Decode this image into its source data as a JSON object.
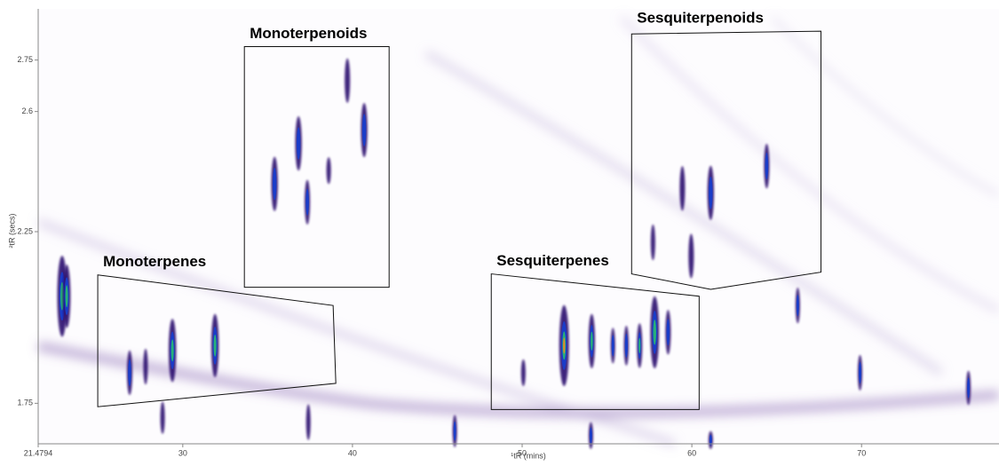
{
  "chart_data": {
    "type": "contour",
    "x_label": "¹tR (mins)",
    "y_label": "²tR (secs)",
    "xlim": [
      21.4794,
      78.1
    ],
    "ylim": [
      1.632,
      2.899
    ],
    "xticks": [
      21.4794,
      30,
      40,
      50,
      60,
      70
    ],
    "yticks": [
      1.75,
      2.25,
      2.6,
      2.75
    ],
    "x": [
      22.89,
      23.16,
      26.87,
      27.81,
      29.39,
      31.9,
      28.81,
      35.41,
      36.82,
      37.34,
      38.6,
      39.7,
      40.69,
      37.4,
      46.03,
      50.07,
      52.47,
      54.1,
      55.35,
      56.14,
      56.92,
      57.81,
      58.6,
      59.44,
      61.11,
      64.41,
      66.24,
      69.91,
      59.96,
      57.71,
      54.05,
      61.11,
      76.3
    ],
    "y": [
      2.062,
      2.062,
      1.839,
      1.857,
      1.904,
      1.918,
      1.708,
      2.389,
      2.507,
      2.336,
      2.428,
      2.69,
      2.546,
      1.695,
      1.669,
      1.839,
      1.918,
      1.931,
      1.918,
      1.918,
      1.918,
      1.957,
      1.957,
      2.376,
      2.363,
      2.441,
      2.035,
      1.839,
      2.179,
      2.219,
      1.656,
      1.643,
      1.795
    ],
    "spread": [
      0.118,
      0.092,
      0.065,
      0.052,
      0.092,
      0.092,
      0.047,
      0.079,
      0.079,
      0.065,
      0.039,
      0.065,
      0.079,
      0.052,
      0.047,
      0.039,
      0.118,
      0.079,
      0.052,
      0.058,
      0.065,
      0.105,
      0.065,
      0.065,
      0.079,
      0.065,
      0.052,
      0.052,
      0.065,
      0.052,
      0.039,
      0.026,
      0.05
    ],
    "intensity": [
      0.9,
      0.8,
      0.5,
      0.4,
      0.8,
      0.9,
      0.4,
      0.6,
      0.5,
      0.5,
      0.3,
      0.4,
      0.5,
      0.4,
      0.5,
      0.3,
      1.0,
      0.8,
      0.7,
      0.7,
      0.8,
      0.9,
      0.6,
      0.4,
      0.5,
      0.5,
      0.5,
      0.5,
      0.4,
      0.4,
      0.6,
      0.5,
      0.7
    ],
    "color_scale": [
      "#2a0a6e",
      "#1a3cc8",
      "#26b07a",
      "#e08a2a"
    ],
    "regions": [
      {
        "label": "Monoterpenes",
        "x": [
          24.99,
          38.86,
          39.02,
          24.99
        ],
        "y": [
          2.124,
          2.035,
          1.808,
          1.74
        ]
      },
      {
        "label": "Monoterpenoids",
        "x": [
          33.63,
          42.16,
          42.16,
          33.63
        ],
        "y": [
          2.789,
          2.789,
          2.088,
          2.088
        ]
      },
      {
        "label": "Sesquiterpenes",
        "x": [
          48.18,
          60.43,
          60.43,
          48.18
        ],
        "y": [
          2.127,
          2.062,
          1.732,
          1.732
        ]
      },
      {
        "label": "Sesquiterpenoids",
        "x": [
          56.45,
          67.61,
          67.61,
          61.11,
          56.45
        ],
        "y": [
          2.826,
          2.834,
          2.132,
          2.082,
          2.127
        ]
      }
    ]
  }
}
